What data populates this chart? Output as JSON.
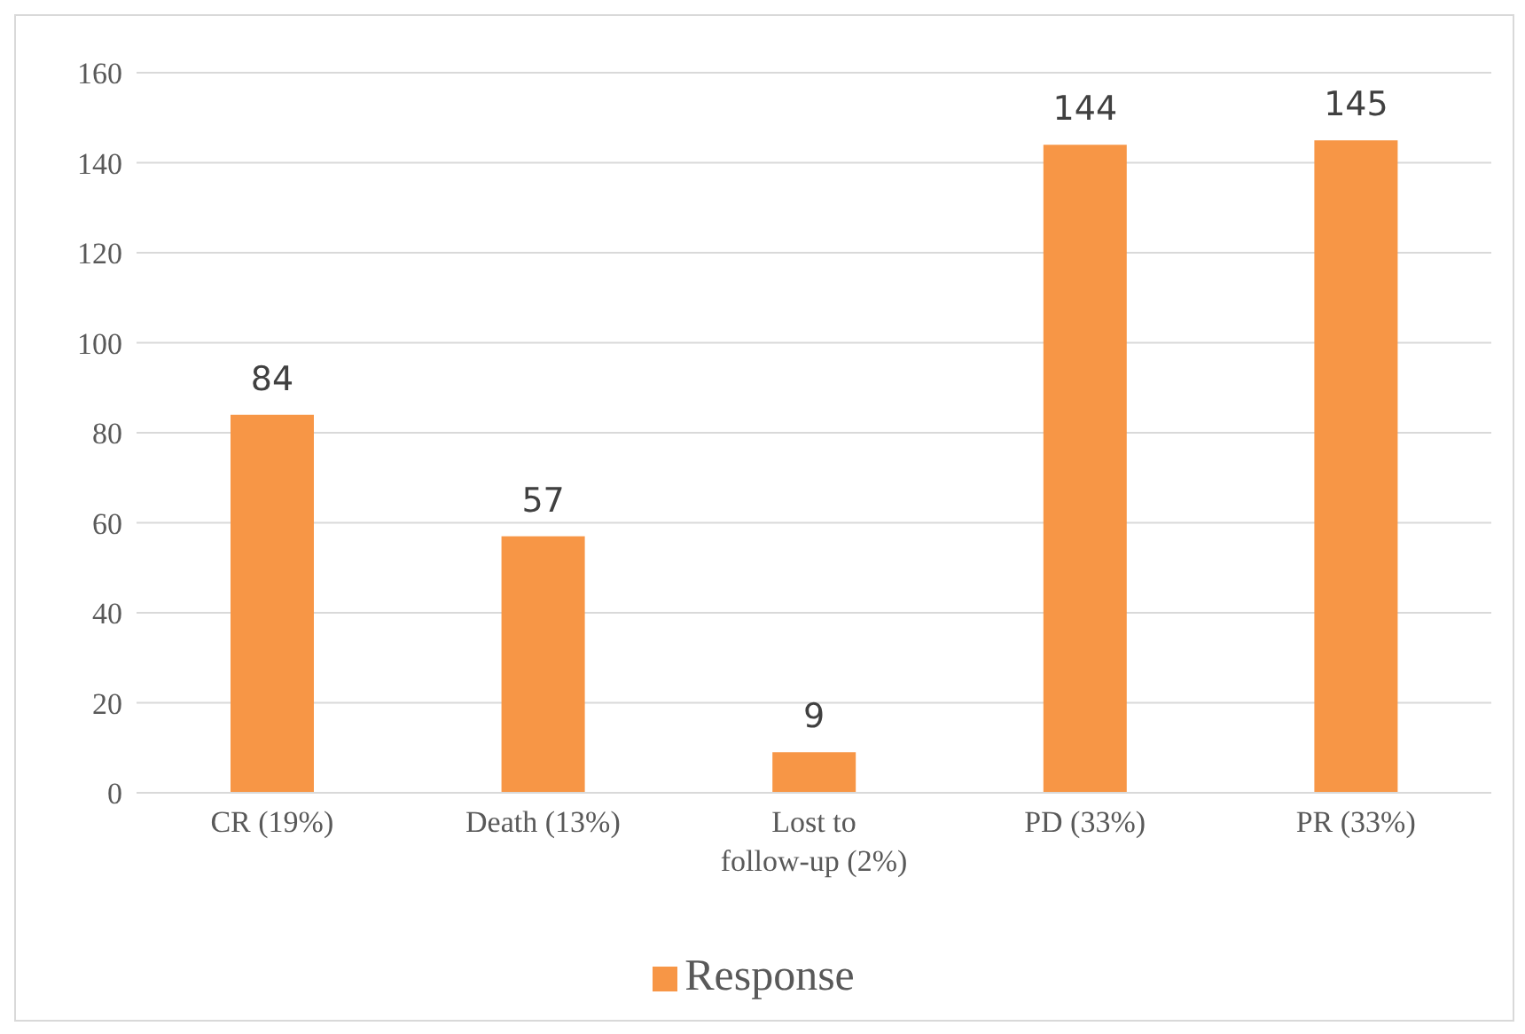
{
  "chart_data": {
    "type": "bar",
    "categories": [
      "CR (19%)",
      "Death (13%)",
      "Lost to follow-up (2%)",
      "PD (33%)",
      "PR (33%)"
    ],
    "series": [
      {
        "name": "Response",
        "color": "#f79646",
        "values": [
          84,
          57,
          9,
          144,
          145
        ]
      }
    ],
    "ylim": [
      0,
      160
    ],
    "yticks": [
      0,
      20,
      40,
      60,
      80,
      100,
      120,
      140,
      160
    ],
    "grid": "y",
    "legend": "bottom",
    "data_labels": true
  }
}
